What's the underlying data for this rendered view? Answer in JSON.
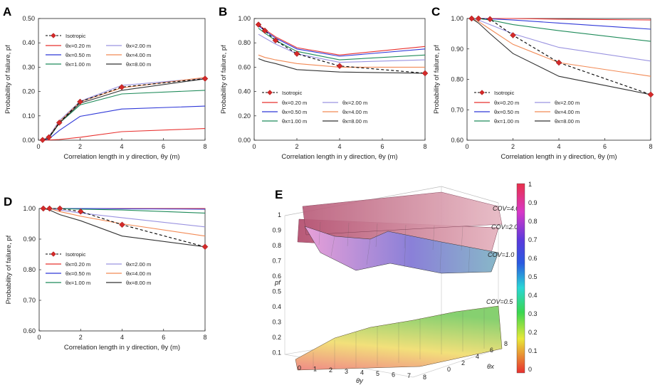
{
  "figure": {
    "legend_entries": [
      "Isotropic",
      "θx=0.20 m",
      "θx=0.50 m",
      "θx=1.00 m",
      "θx=2.00 m",
      "θx=4.00 m",
      "θx=8.00 m"
    ],
    "legend_colors": [
      "#000000",
      "#e8312f",
      "#2f38d8",
      "#1f8b5a",
      "#9a93e0",
      "#f28a55",
      "#333333"
    ]
  },
  "chart_data": [
    {
      "panel": "A",
      "type": "line",
      "xlabel": "Correlation length in y direction, θy (m)",
      "ylabel": "Probability of failure, pf",
      "xlim": [
        0,
        8
      ],
      "ylim": [
        0,
        0.5
      ],
      "xticks": [
        "0",
        "2",
        "4",
        "6",
        "8"
      ],
      "yticks": [
        "0.00",
        "0.10",
        "0.20",
        "0.30",
        "0.40",
        "0.50"
      ],
      "x": [
        0.2,
        0.5,
        1,
        2,
        4,
        8
      ],
      "series": [
        {
          "name": "θx=0.20 m",
          "values": [
            0.0,
            0.001,
            0.003,
            0.012,
            0.035,
            0.048
          ]
        },
        {
          "name": "θx=0.50 m",
          "values": [
            0.0,
            0.005,
            0.04,
            0.098,
            0.128,
            0.14
          ]
        },
        {
          "name": "θx=1.00 m",
          "values": [
            0.0,
            0.008,
            0.07,
            0.145,
            0.19,
            0.205
          ]
        },
        {
          "name": "θx=2.00 m",
          "values": [
            0.0,
            0.015,
            0.08,
            0.16,
            0.225,
            0.255
          ]
        },
        {
          "name": "θx=4.00 m",
          "values": [
            0.0,
            0.012,
            0.075,
            0.158,
            0.215,
            0.258
          ]
        },
        {
          "name": "θx=8.00 m",
          "values": [
            0.0,
            0.01,
            0.07,
            0.152,
            0.205,
            0.252
          ]
        },
        {
          "name": "Isotropic",
          "values": [
            0.001,
            0.012,
            0.072,
            0.158,
            0.218,
            0.253
          ]
        }
      ]
    },
    {
      "panel": "B",
      "type": "line",
      "xlabel": "Correlation length in y direction, θy (m)",
      "ylabel": "Probability of failure, pf",
      "xlim": [
        0,
        8
      ],
      "ylim": [
        0,
        1
      ],
      "xticks": [
        "0",
        "2",
        "4",
        "6",
        "8"
      ],
      "yticks": [
        "0.00",
        "0.20",
        "0.40",
        "0.60",
        "0.80",
        "1.00"
      ],
      "x": [
        0.2,
        0.5,
        1,
        2,
        4,
        8
      ],
      "series": [
        {
          "name": "θx=0.20 m",
          "values": [
            0.95,
            0.91,
            0.85,
            0.76,
            0.7,
            0.77
          ]
        },
        {
          "name": "θx=0.50 m",
          "values": [
            0.94,
            0.9,
            0.84,
            0.75,
            0.69,
            0.75
          ]
        },
        {
          "name": "θx=1.00 m",
          "values": [
            0.92,
            0.88,
            0.82,
            0.73,
            0.66,
            0.7
          ]
        },
        {
          "name": "θx=2.00 m",
          "values": [
            0.87,
            0.84,
            0.79,
            0.71,
            0.64,
            0.66
          ]
        },
        {
          "name": "θx=4.00 m",
          "values": [
            0.7,
            0.68,
            0.66,
            0.63,
            0.6,
            0.6
          ]
        },
        {
          "name": "θx=8.00 m",
          "values": [
            0.67,
            0.65,
            0.63,
            0.58,
            0.56,
            0.55
          ]
        },
        {
          "name": "Isotropic",
          "values": [
            0.95,
            0.9,
            0.82,
            0.71,
            0.61,
            0.55
          ]
        }
      ]
    },
    {
      "panel": "C",
      "type": "line",
      "xlabel": "Correlation length in y direction, θy (m)",
      "ylabel": "Probability of failure, pf",
      "xlim": [
        0,
        8
      ],
      "ylim": [
        0.6,
        1
      ],
      "xticks": [
        "0",
        "2",
        "4",
        "6",
        "8"
      ],
      "yticks": [
        "0.60",
        "0.70",
        "0.80",
        "0.90",
        "1.00"
      ],
      "x": [
        0.2,
        0.5,
        1,
        2,
        4,
        8
      ],
      "series": [
        {
          "name": "θx=0.20 m",
          "values": [
            1.0,
            1.0,
            1.0,
            1.0,
            0.998,
            0.995
          ]
        },
        {
          "name": "θx=0.50 m",
          "values": [
            1.0,
            1.0,
            0.999,
            0.995,
            0.985,
            0.965
          ]
        },
        {
          "name": "θx=1.00 m",
          "values": [
            1.0,
            1.0,
            0.995,
            0.98,
            0.96,
            0.925
          ]
        },
        {
          "name": "θx=2.00 m",
          "values": [
            1.0,
            0.995,
            0.98,
            0.95,
            0.905,
            0.86
          ]
        },
        {
          "name": "θx=4.00 m",
          "values": [
            1.0,
            0.99,
            0.965,
            0.915,
            0.855,
            0.81
          ]
        },
        {
          "name": "θx=8.00 m",
          "values": [
            1.0,
            0.985,
            0.95,
            0.885,
            0.81,
            0.75
          ]
        },
        {
          "name": "Isotropic",
          "values": [
            1.0,
            1.0,
            0.998,
            0.945,
            0.855,
            0.75
          ]
        }
      ]
    },
    {
      "panel": "D",
      "type": "line",
      "xlabel": "Correlation length in y direction, θy (m)",
      "ylabel": "Probability of failure, pf",
      "xlim": [
        0,
        8
      ],
      "ylim": [
        0.6,
        1
      ],
      "xticks": [
        "0",
        "2",
        "4",
        "6",
        "8"
      ],
      "yticks": [
        "0.60",
        "0.70",
        "0.80",
        "0.90",
        "1.00"
      ],
      "x": [
        0.2,
        0.5,
        1,
        2,
        4,
        8
      ],
      "series": [
        {
          "name": "θx=0.20 m",
          "values": [
            1.0,
            1.0,
            1.0,
            1.0,
            1.0,
            1.0
          ]
        },
        {
          "name": "θx=0.50 m",
          "values": [
            1.0,
            1.0,
            1.0,
            1.0,
            0.999,
            0.998
          ]
        },
        {
          "name": "θx=1.00 m",
          "values": [
            1.0,
            1.0,
            1.0,
            0.998,
            0.995,
            0.985
          ]
        },
        {
          "name": "θx=2.00 m",
          "values": [
            1.0,
            1.0,
            0.995,
            0.985,
            0.97,
            0.94
          ]
        },
        {
          "name": "θx=4.00 m",
          "values": [
            1.0,
            1.0,
            0.99,
            0.975,
            0.95,
            0.91
          ]
        },
        {
          "name": "θx=8.00 m",
          "values": [
            1.0,
            0.995,
            0.98,
            0.96,
            0.91,
            0.875
          ]
        },
        {
          "name": "Isotropic",
          "values": [
            1.0,
            1.0,
            1.0,
            0.99,
            0.947,
            0.875
          ]
        }
      ]
    },
    {
      "panel": "E",
      "type": "surface",
      "zlabel": "pf",
      "xlabel": "θy",
      "ylabel": "θx",
      "zticks": [
        "1",
        "0.9",
        "0.8",
        "0.7",
        "0.6",
        "0.5",
        "0.4",
        "0.3",
        "0.2",
        "0.1"
      ],
      "xticks": [
        "0",
        "1",
        "2",
        "3",
        "4",
        "5",
        "6",
        "7",
        "8"
      ],
      "yticks": [
        "0",
        "2",
        "4",
        "6",
        "8"
      ],
      "colorbar_ticks": [
        "1",
        "0.9",
        "0.8",
        "0.7",
        "0.6",
        "0.5",
        "0.4",
        "0.3",
        "0.2",
        "0.1",
        "0"
      ],
      "surfaces": [
        "COV=4.0",
        "COV=2.0",
        "COV=1.0",
        "COV=0.5"
      ]
    }
  ]
}
